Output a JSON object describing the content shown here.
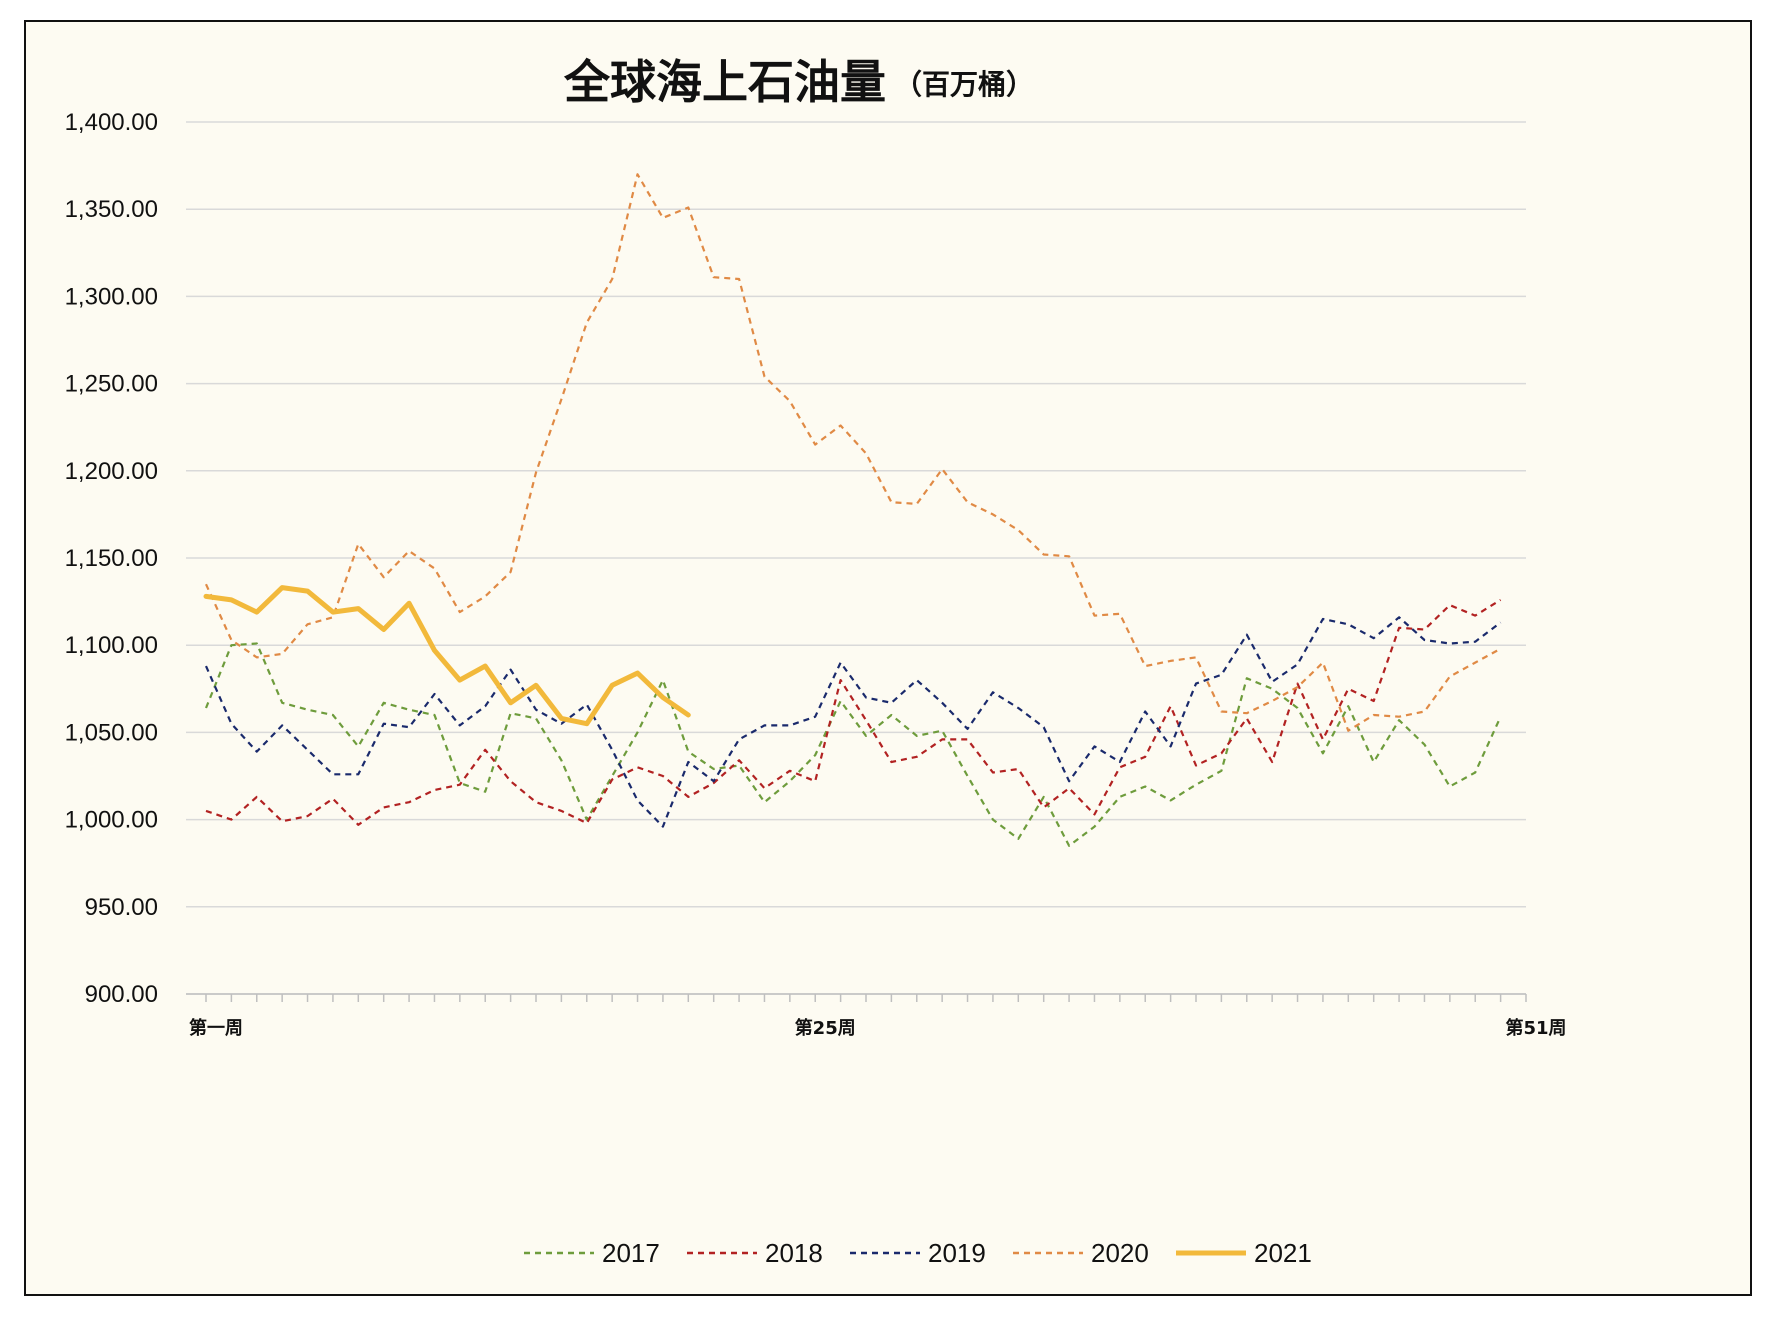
{
  "chart_data": {
    "type": "line",
    "title": "全球海上石油量",
    "subtitle": "（百万桶）",
    "xlabel": "",
    "ylabel": "",
    "ylim": [
      900,
      1400
    ],
    "yticks": [
      900,
      950,
      1000,
      1050,
      1100,
      1150,
      1200,
      1250,
      1300,
      1350,
      1400
    ],
    "ytick_labels": [
      "900.00",
      "950.00",
      "1,000.00",
      "1,050.00",
      "1,100.00",
      "1,150.00",
      "1,200.00",
      "1,250.00",
      "1,300.00",
      "1,350.00",
      "1,400.00"
    ],
    "x_count": 53,
    "x_tick_labels": [
      {
        "index": 1,
        "label": "第一周"
      },
      {
        "index": 25,
        "label": "第25周"
      },
      {
        "index": 53,
        "label": "第51周"
      }
    ],
    "grid": true,
    "legend_position": "bottom",
    "series": [
      {
        "name": "2017",
        "color": "#6e9c3c",
        "style": "dashed",
        "values": [
          1064,
          1100,
          1101,
          1067,
          1063,
          1060,
          1042,
          1067,
          1063,
          1060,
          1021,
          1016,
          1061,
          1058,
          1034,
          1000,
          1025,
          1050,
          1080,
          1039,
          1029,
          1031,
          1010,
          1022,
          1037,
          1068,
          1048,
          1060,
          1048,
          1051,
          1025,
          1000,
          989,
          1013,
          985,
          996,
          1013,
          1019,
          1011,
          1020,
          1028,
          1081,
          1075,
          1064,
          1038,
          1065,
          1033,
          1057,
          1043,
          1019,
          1027,
          1059
        ]
      },
      {
        "name": "2018",
        "color": "#b22222",
        "style": "dashed",
        "values": [
          1005,
          1000,
          1013,
          999,
          1002,
          1012,
          997,
          1007,
          1010,
          1017,
          1020,
          1040,
          1022,
          1010,
          1005,
          998,
          1023,
          1030,
          1025,
          1013,
          1021,
          1034,
          1018,
          1028,
          1022,
          1080,
          1057,
          1033,
          1036,
          1046,
          1046,
          1027,
          1029,
          1007,
          1018,
          1003,
          1030,
          1036,
          1065,
          1031,
          1038,
          1058,
          1033,
          1078,
          1046,
          1075,
          1068,
          1110,
          1109,
          1123,
          1117,
          1126
        ]
      },
      {
        "name": "2019",
        "color": "#1a2a6c",
        "style": "dashed",
        "values": [
          1088,
          1055,
          1039,
          1054,
          1040,
          1026,
          1026,
          1055,
          1053,
          1072,
          1054,
          1065,
          1086,
          1063,
          1055,
          1066,
          1040,
          1011,
          996,
          1033,
          1022,
          1046,
          1054,
          1054,
          1059,
          1090,
          1070,
          1067,
          1080,
          1067,
          1052,
          1073,
          1064,
          1053,
          1022,
          1042,
          1033,
          1062,
          1042,
          1078,
          1083,
          1106,
          1079,
          1089,
          1115,
          1112,
          1104,
          1116,
          1103,
          1101,
          1102,
          1113
        ]
      },
      {
        "name": "2020",
        "color": "#e08a45",
        "style": "dashed",
        "values": [
          1135,
          1103,
          1093,
          1095,
          1112,
          1116,
          1158,
          1139,
          1154,
          1144,
          1119,
          1128,
          1142,
          1199,
          1241,
          1285,
          1310,
          1370,
          1345,
          1351,
          1311,
          1310,
          1254,
          1240,
          1215,
          1226,
          1210,
          1182,
          1181,
          1201,
          1182,
          1175,
          1166,
          1152,
          1151,
          1117,
          1118,
          1088,
          1091,
          1093,
          1062,
          1061,
          1068,
          1076,
          1090,
          1051,
          1060,
          1059,
          1062,
          1082,
          1090,
          1098
        ]
      },
      {
        "name": "2021",
        "color": "#f2b93b",
        "style": "solid",
        "values": [
          1128,
          1126,
          1119,
          1133,
          1131,
          1119,
          1121,
          1109,
          1124,
          1097,
          1080,
          1088,
          1067,
          1077,
          1058,
          1055,
          1077,
          1084,
          1070,
          1060
        ]
      }
    ]
  }
}
